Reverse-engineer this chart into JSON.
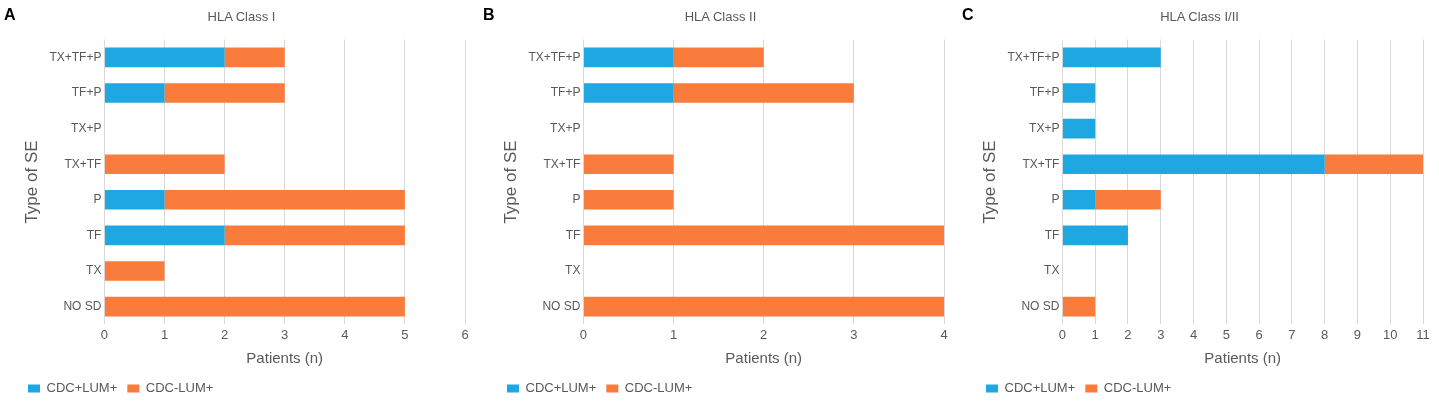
{
  "chart_data": [
    {
      "type": "bar",
      "orientation": "horizontal",
      "stacked": true,
      "title": "HLA Class I",
      "annotations": [
        "A"
      ],
      "xlabel": "Patients (n)",
      "ylabel": "Type of SE",
      "categories": [
        "TX+TF+P",
        "TF+P",
        "TX+P",
        "TX+TF",
        "P",
        "TF",
        "TX",
        "NO SD"
      ],
      "series": [
        {
          "name": "CDC+LUM+",
          "color": "#1ea7e1",
          "values": [
            2,
            1,
            0,
            0,
            1,
            2,
            0,
            0
          ]
        },
        {
          "name": "CDC-LUM+",
          "color": "#f97c3c",
          "values": [
            1,
            2,
            0,
            2,
            4,
            3,
            1,
            5
          ]
        }
      ],
      "xlim": [
        0,
        6
      ],
      "xticks": [
        0,
        1,
        2,
        3,
        4,
        5,
        6
      ],
      "grid": "x",
      "legend": "bottom"
    },
    {
      "type": "bar",
      "orientation": "horizontal",
      "stacked": true,
      "title": "HLA Class II",
      "annotations": [
        "B"
      ],
      "xlabel": "Patients (n)",
      "ylabel": "Type of SE",
      "categories": [
        "TX+TF+P",
        "TF+P",
        "TX+P",
        "TX+TF",
        "P",
        "TF",
        "TX",
        "NO SD"
      ],
      "series": [
        {
          "name": "CDC+LUM+",
          "color": "#1ea7e1",
          "values": [
            1,
            1,
            0,
            0,
            0,
            0,
            0,
            0
          ]
        },
        {
          "name": "CDC-LUM+",
          "color": "#f97c3c",
          "values": [
            1,
            2,
            0,
            1,
            1,
            4,
            0,
            4
          ]
        }
      ],
      "xlim": [
        0,
        4
      ],
      "xticks": [
        0,
        1,
        2,
        3,
        4
      ],
      "grid": "x",
      "legend": "bottom"
    },
    {
      "type": "bar",
      "orientation": "horizontal",
      "stacked": true,
      "title": "HLA Class I/II",
      "annotations": [
        "C"
      ],
      "xlabel": "Patients (n)",
      "ylabel": "Type of SE",
      "categories": [
        "TX+TF+P",
        "TF+P",
        "TX+P",
        "TX+TF",
        "P",
        "TF",
        "TX",
        "NO SD"
      ],
      "series": [
        {
          "name": "CDC+LUM+",
          "color": "#1ea7e1",
          "values": [
            3,
            1,
            1,
            8,
            1,
            2,
            0,
            0
          ]
        },
        {
          "name": "CDC-LUM+",
          "color": "#f97c3c",
          "values": [
            0,
            0,
            0,
            3,
            2,
            0,
            0,
            1
          ]
        }
      ],
      "xlim": [
        0,
        11
      ],
      "xticks": [
        0,
        1,
        2,
        3,
        4,
        5,
        6,
        7,
        8,
        9,
        10,
        11
      ],
      "grid": "x",
      "legend": "bottom"
    }
  ]
}
